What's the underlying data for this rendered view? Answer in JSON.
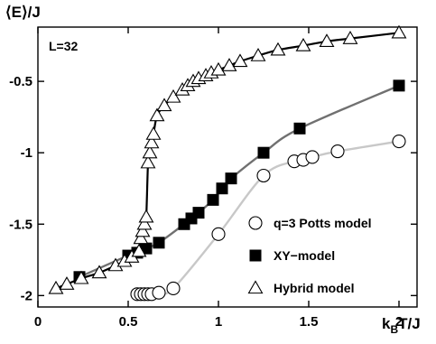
{
  "chart_data": {
    "type": "scatter",
    "title": "",
    "annotation": "L=32",
    "ylabel_parts": [
      "⟨E⟩",
      "/J"
    ],
    "xlabel_parts": {
      "k": "k",
      "sub": "B",
      "rest": "T/J"
    },
    "xlim": [
      0,
      2.1
    ],
    "ylim": [
      -2.08,
      -0.12
    ],
    "x_ticks": [
      0,
      0.5,
      1,
      1.5,
      2
    ],
    "x_tick_labels": [
      "0",
      "0.5",
      "1",
      "1.5",
      "2"
    ],
    "y_ticks": [
      -0.5,
      -1,
      -1.5,
      -2
    ],
    "y_tick_labels": [
      "-0.5",
      "-1",
      "-1.5",
      "-2"
    ],
    "grid": false,
    "legend_position": "bottom-right",
    "series": [
      {
        "name": "q=3 Potts model",
        "marker": "circle",
        "curve_color": "#c8c8c8",
        "points": [
          [
            0.55,
            -1.99
          ],
          [
            0.57,
            -1.99
          ],
          [
            0.59,
            -1.99
          ],
          [
            0.61,
            -1.99
          ],
          [
            0.63,
            -1.99
          ],
          [
            0.67,
            -1.98
          ],
          [
            0.75,
            -1.95
          ],
          [
            1.0,
            -1.57
          ],
          [
            1.25,
            -1.16
          ],
          [
            1.42,
            -1.06
          ],
          [
            1.47,
            -1.05
          ],
          [
            1.52,
            -1.03
          ],
          [
            1.66,
            -0.99
          ],
          [
            2.0,
            -0.92
          ]
        ]
      },
      {
        "name": "XY−model",
        "marker": "square",
        "curve_color": "#707070",
        "points": [
          [
            0.23,
            -1.87
          ],
          [
            0.5,
            -1.72
          ],
          [
            0.55,
            -1.7
          ],
          [
            0.6,
            -1.67
          ],
          [
            0.67,
            -1.63
          ],
          [
            0.81,
            -1.5
          ],
          [
            0.85,
            -1.46
          ],
          [
            0.89,
            -1.42
          ],
          [
            0.97,
            -1.33
          ],
          [
            1.02,
            -1.25
          ],
          [
            1.07,
            -1.18
          ],
          [
            1.25,
            -1.0
          ],
          [
            1.45,
            -0.83
          ],
          [
            2.0,
            -0.53
          ]
        ]
      },
      {
        "name": "Hybrid model",
        "marker": "triangle",
        "curve_color": "#000000",
        "points": [
          [
            0.1,
            -1.95
          ],
          [
            0.16,
            -1.92
          ],
          [
            0.24,
            -1.88
          ],
          [
            0.34,
            -1.84
          ],
          [
            0.43,
            -1.79
          ],
          [
            0.48,
            -1.76
          ],
          [
            0.52,
            -1.73
          ],
          [
            0.56,
            -1.69
          ],
          [
            0.57,
            -1.6
          ],
          [
            0.58,
            -1.55
          ],
          [
            0.59,
            -1.5
          ],
          [
            0.6,
            -1.45
          ],
          [
            0.61,
            -1.07
          ],
          [
            0.62,
            -1.0
          ],
          [
            0.63,
            -0.93
          ],
          [
            0.64,
            -0.87
          ],
          [
            0.66,
            -0.74
          ],
          [
            0.7,
            -0.67
          ],
          [
            0.75,
            -0.61
          ],
          [
            0.8,
            -0.56
          ],
          [
            0.83,
            -0.53
          ],
          [
            0.86,
            -0.5
          ],
          [
            0.89,
            -0.48
          ],
          [
            0.93,
            -0.46
          ],
          [
            0.96,
            -0.44
          ],
          [
            1.0,
            -0.42
          ],
          [
            1.06,
            -0.39
          ],
          [
            1.12,
            -0.36
          ],
          [
            1.22,
            -0.32
          ],
          [
            1.33,
            -0.28
          ],
          [
            1.47,
            -0.25
          ],
          [
            1.6,
            -0.22
          ],
          [
            1.73,
            -0.2
          ],
          [
            2.0,
            -0.16
          ]
        ]
      }
    ]
  }
}
